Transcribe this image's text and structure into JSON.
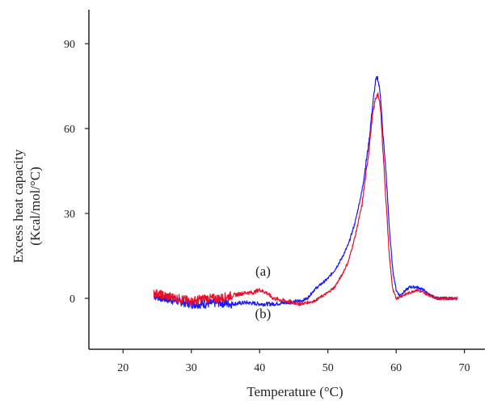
{
  "chart_data": {
    "type": "line",
    "title": "",
    "xlabel": "Temperature (°C)",
    "ylabel_line1": "Excess heat capacity",
    "ylabel_line2": "(Kcal/mol/°C)",
    "xlim": [
      15,
      73
    ],
    "ylim": [
      -18,
      102
    ],
    "xticks": [
      20,
      30,
      40,
      50,
      60,
      70
    ],
    "yticks": [
      0,
      30,
      60,
      90
    ],
    "grid": false,
    "annotations": [
      {
        "text": "(a)",
        "x": 40.5,
        "y": 8
      },
      {
        "text": "(b)",
        "x": 40.5,
        "y": -7
      }
    ],
    "series": [
      {
        "color": "#1a1aff",
        "points": [
          [
            24.5,
            1
          ],
          [
            26,
            0
          ],
          [
            28,
            -1
          ],
          [
            30,
            -2
          ],
          [
            32,
            -2
          ],
          [
            34,
            -1.5
          ],
          [
            36,
            -2
          ],
          [
            38,
            -1.5
          ],
          [
            40,
            -2
          ],
          [
            42,
            -2
          ],
          [
            44,
            -1.5
          ],
          [
            46,
            -1
          ],
          [
            47,
            0
          ],
          [
            48,
            3
          ],
          [
            49,
            5
          ],
          [
            50,
            7
          ],
          [
            51,
            10
          ],
          [
            52,
            14
          ],
          [
            53,
            19
          ],
          [
            54,
            27
          ],
          [
            55,
            38
          ],
          [
            56,
            55
          ],
          [
            56.5,
            67
          ],
          [
            57,
            77
          ],
          [
            57.3,
            78
          ],
          [
            57.7,
            72
          ],
          [
            58,
            60
          ],
          [
            58.5,
            45
          ],
          [
            59,
            25
          ],
          [
            59.5,
            10
          ],
          [
            60,
            3
          ],
          [
            60.5,
            1
          ],
          [
            61,
            2
          ],
          [
            62,
            4
          ],
          [
            63,
            4
          ],
          [
            64,
            3
          ],
          [
            65,
            1
          ],
          [
            66,
            0
          ],
          [
            67,
            0
          ],
          [
            68,
            0
          ],
          [
            69,
            0
          ]
        ]
      },
      {
        "color": "#e8102a",
        "points": [
          [
            24.5,
            2
          ],
          [
            26,
            1
          ],
          [
            28,
            0
          ],
          [
            30,
            -1
          ],
          [
            32,
            0
          ],
          [
            34,
            0
          ],
          [
            36,
            1
          ],
          [
            38,
            2
          ],
          [
            39,
            2
          ],
          [
            40,
            3
          ],
          [
            41,
            2
          ],
          [
            42,
            0
          ],
          [
            44,
            -1
          ],
          [
            46,
            -2
          ],
          [
            48,
            -1
          ],
          [
            50,
            2
          ],
          [
            51,
            4
          ],
          [
            52,
            8
          ],
          [
            53,
            13
          ],
          [
            54,
            22
          ],
          [
            55,
            33
          ],
          [
            56,
            52
          ],
          [
            56.5,
            64
          ],
          [
            57,
            71
          ],
          [
            57.3,
            72
          ],
          [
            57.7,
            68
          ],
          [
            58,
            55
          ],
          [
            58.5,
            35
          ],
          [
            59,
            15
          ],
          [
            59.5,
            3
          ],
          [
            60,
            0
          ],
          [
            61,
            1
          ],
          [
            62,
            2
          ],
          [
            63,
            3
          ],
          [
            64,
            2
          ],
          [
            65,
            1
          ],
          [
            66,
            0
          ],
          [
            67,
            0
          ],
          [
            68,
            0
          ],
          [
            69,
            0
          ]
        ]
      }
    ]
  }
}
